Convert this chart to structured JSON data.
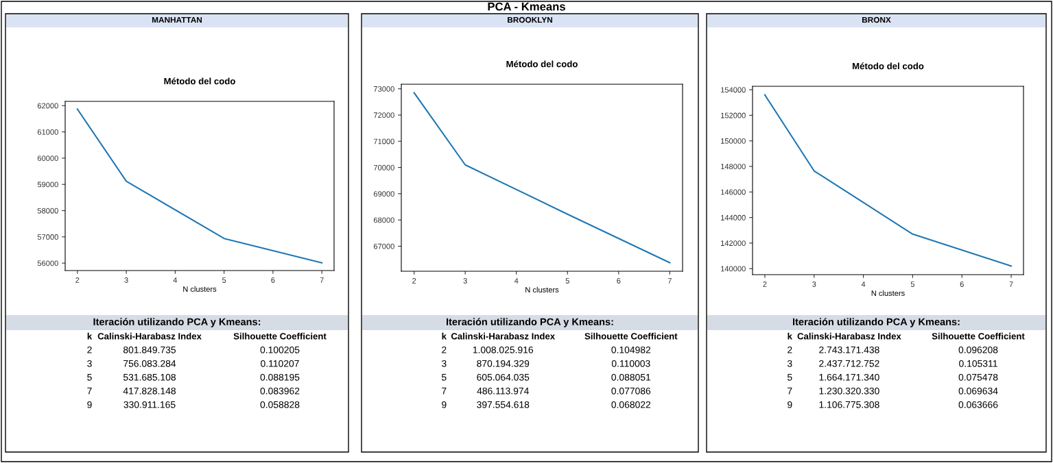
{
  "chart_data": [
    {
      "type": "line",
      "title": "Método del codo",
      "xlabel": "N clusters",
      "x": [
        2,
        3,
        5,
        7
      ],
      "xlim": [
        1.75,
        7.25
      ],
      "xticks": [
        2,
        3,
        4,
        5,
        6,
        7
      ],
      "ylim": [
        55717,
        62163
      ],
      "yticks": [
        56000,
        57000,
        58000,
        59000,
        60000,
        61000,
        62000
      ],
      "grid": false,
      "series": [
        {
          "color": "#1f77b4",
          "values": [
            61870,
            59120,
            56940,
            56010
          ]
        }
      ],
      "annotations": [
        "PCA - Kmeans",
        "MANHATTAN",
        "Iteración utilizando PCA y Kmeans:",
        "k",
        "Calinski-Harabasz Index",
        "Silhouette Coefficient",
        "2",
        "801.849.735",
        "0.100205",
        "3",
        "756.083.284",
        "0.110207",
        "5",
        "531.685.108",
        "0.088195",
        "7",
        "417.828.148",
        "0.083962",
        "9",
        "330.911.165",
        "0.058828"
      ]
    },
    {
      "type": "line",
      "title": "Método del codo",
      "xlabel": "N clusters",
      "x": [
        2,
        3,
        5,
        7
      ],
      "xlim": [
        1.75,
        7.25
      ],
      "xticks": [
        2,
        3,
        4,
        5,
        6,
        7
      ],
      "ylim": [
        66046,
        73174
      ],
      "yticks": [
        67000,
        68000,
        69000,
        70000,
        71000,
        72000,
        73000
      ],
      "grid": false,
      "series": [
        {
          "color": "#1f77b4",
          "values": [
            72850,
            70100,
            68220,
            66370
          ]
        }
      ],
      "annotations": [
        "BROOKLYN",
        "Iteración utilizando PCA y Kmeans:",
        "k",
        "Calinski-Harabasz Index",
        "Silhouette Coefficient",
        "2",
        "1.008.025.916",
        "0.104982",
        "3",
        "870.194.329",
        "0.110003",
        "5",
        "605.064.035",
        "0.088051",
        "7",
        "486.113.974",
        "0.077086",
        "9",
        "397.554.618",
        "0.068022"
      ]
    },
    {
      "type": "line",
      "title": "Método del codo",
      "xlabel": "N clusters",
      "x": [
        2,
        3,
        5,
        7
      ],
      "xlim": [
        1.75,
        7.25
      ],
      "xticks": [
        2,
        3,
        4,
        5,
        6,
        7
      ],
      "ylim": [
        139530,
        154270
      ],
      "yticks": [
        140000,
        142000,
        144000,
        146000,
        148000,
        150000,
        152000,
        154000
      ],
      "grid": false,
      "series": [
        {
          "color": "#1f77b4",
          "values": [
            153600,
            147650,
            142700,
            140200
          ]
        }
      ],
      "annotations": [
        "BRONX",
        "Iteración utilizando PCA y Kmeans:",
        "k",
        "Calinski-Harabasz Index",
        "Silhouette Coefficient",
        "2",
        "2.743.171.438",
        "0.096208",
        "3",
        "2.437.712.752",
        "0.105311",
        "5",
        "1.664.171.340",
        "0.075478",
        "7",
        "1.230.320.330",
        "0.069634",
        "9",
        "1.106.775.308",
        "0.063666"
      ]
    }
  ]
}
